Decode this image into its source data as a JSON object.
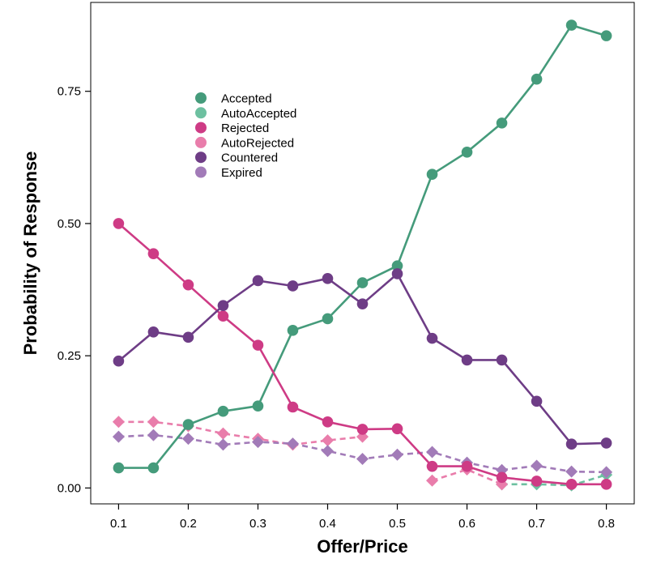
{
  "chart_data": {
    "type": "line",
    "title": "",
    "xlabel": "Offer/Price",
    "ylabel": "Probability of Response",
    "xlim": [
      0.06,
      0.84
    ],
    "ylim": [
      -0.03,
      0.918
    ],
    "xticks": [
      0.1,
      0.2,
      0.3,
      0.4,
      0.5,
      0.6,
      0.7,
      0.8
    ],
    "xtick_labels": [
      "0.1",
      "0.2",
      "0.3",
      "0.4",
      "0.5",
      "0.6",
      "0.7",
      "0.8"
    ],
    "yticks": [
      0.0,
      0.25,
      0.5,
      0.75
    ],
    "ytick_labels": [
      "0.00",
      "0.25",
      "0.50",
      "0.75"
    ],
    "grid": false,
    "legend_position": "upper-left",
    "x": [
      0.1,
      0.15,
      0.2,
      0.25,
      0.3,
      0.35,
      0.4,
      0.45,
      0.5,
      0.55,
      0.6,
      0.65,
      0.7,
      0.75,
      0.8
    ],
    "series": [
      {
        "name": "Accepted",
        "color": "#459B7B",
        "dashed": false,
        "marker": "circle",
        "values": [
          0.038,
          0.038,
          0.12,
          0.145,
          0.155,
          0.298,
          0.32,
          0.388,
          0.42,
          0.593,
          0.635,
          0.69,
          0.773,
          0.875,
          0.855
        ]
      },
      {
        "name": "AutoAccepted",
        "color": "#6DC0A0",
        "dashed": true,
        "marker": "diamond",
        "values": [
          null,
          null,
          null,
          null,
          null,
          null,
          null,
          null,
          null,
          null,
          null,
          0.007,
          0.007,
          0.005,
          0.025
        ]
      },
      {
        "name": "Rejected",
        "color": "#CE3B85",
        "dashed": false,
        "marker": "circle",
        "values": [
          0.5,
          0.443,
          0.384,
          0.325,
          0.27,
          0.153,
          0.125,
          0.111,
          0.112,
          0.041,
          0.041,
          0.02,
          0.013,
          0.007,
          0.007
        ]
      },
      {
        "name": "AutoRejected",
        "color": "#E97DAB",
        "dashed": true,
        "marker": "diamond",
        "values": [
          0.125,
          0.125,
          0.117,
          0.103,
          0.093,
          0.082,
          0.09,
          0.097,
          null,
          0.014,
          0.035,
          0.007,
          null,
          null,
          null
        ]
      },
      {
        "name": "Countered",
        "color": "#6E3D86",
        "dashed": false,
        "marker": "circle",
        "values": [
          0.24,
          0.295,
          0.285,
          0.345,
          0.392,
          0.382,
          0.396,
          0.348,
          0.405,
          0.283,
          0.242,
          0.242,
          0.164,
          0.083,
          0.085
        ]
      },
      {
        "name": "Expired",
        "color": "#A27BB8",
        "dashed": true,
        "marker": "diamond",
        "values": [
          0.097,
          0.1,
          0.093,
          0.082,
          0.087,
          0.084,
          0.07,
          0.055,
          0.063,
          0.068,
          0.048,
          0.034,
          0.042,
          0.031,
          0.03
        ]
      }
    ]
  }
}
